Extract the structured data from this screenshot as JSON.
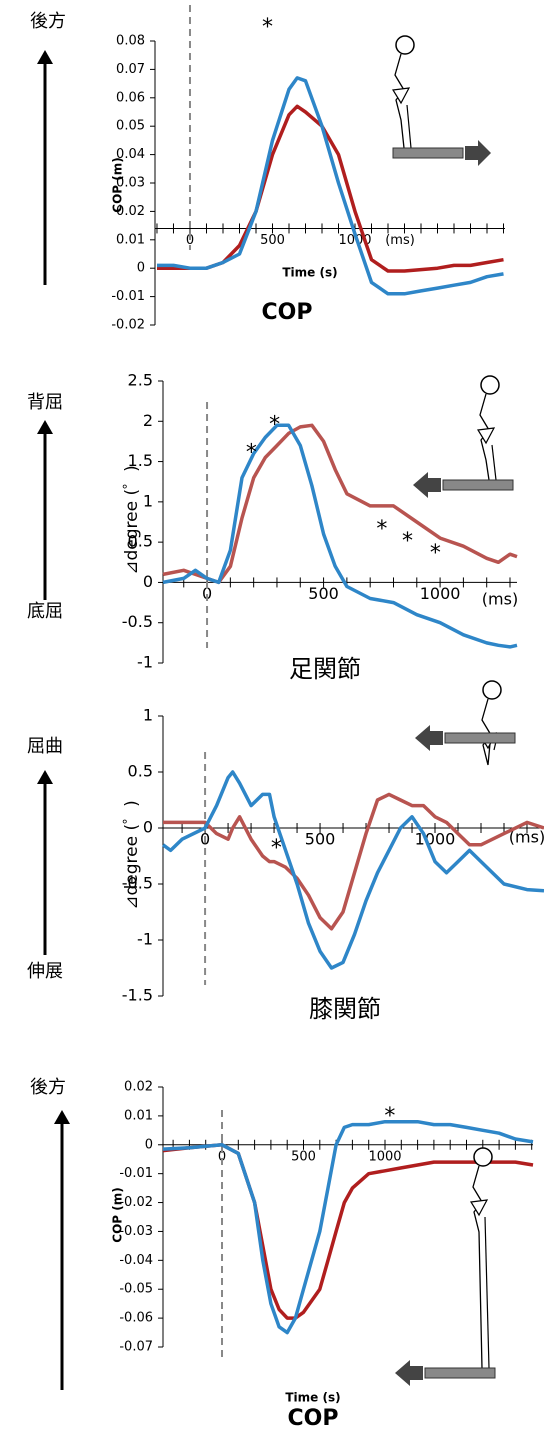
{
  "chart_data": [
    {
      "type": "line",
      "title": "COP",
      "x_label": "Time (s)",
      "y_label": "COP (m)",
      "x_unit": "(ms)",
      "top_label": "後方",
      "annotations": [
        "*"
      ],
      "xaxis_at": 0.014,
      "xlim": [
        -212,
        1909
      ],
      "ylim": [
        -0.02,
        0.08
      ],
      "xticks": [
        0,
        500,
        1000
      ],
      "yticks": [
        {
          "value": -0.02,
          "label": "-0.02"
        },
        {
          "value": -0.01,
          "label": "-0.01"
        },
        0,
        {
          "value": 0.01,
          "label": "0.01"
        },
        {
          "value": 0.02,
          "label": "0.02"
        },
        {
          "value": 0.03,
          "label": "0.03"
        },
        {
          "value": 0.04,
          "label": "0.04"
        },
        {
          "value": 0.05,
          "label": "0.05"
        },
        {
          "value": 0.06,
          "label": "0.06"
        },
        {
          "value": 0.07,
          "label": "0.07"
        },
        {
          "value": 0.08,
          "label": "0.08"
        }
      ],
      "x": [
        -200,
        -100,
        0,
        100,
        200,
        300,
        400,
        500,
        600,
        650,
        700,
        800,
        900,
        1000,
        1100,
        1200,
        1300,
        1400,
        1500,
        1600,
        1700,
        1800,
        1900
      ],
      "series": [
        {
          "color": "#b01e1e",
          "values": [
            0,
            0,
            0,
            0,
            0.002,
            0.008,
            0.02,
            0.04,
            0.054,
            0.057,
            0.055,
            0.05,
            0.04,
            0.02,
            0.003,
            -0.001,
            -0.001,
            -0.0005,
            0,
            0.001,
            0.001,
            0.002,
            0.003
          ]
        },
        {
          "color": "#2e86c8",
          "values": [
            0.001,
            0.001,
            0,
            0,
            0.002,
            0.005,
            0.02,
            0.045,
            0.063,
            0.067,
            0.066,
            0.05,
            0.03,
            0.012,
            -0.005,
            -0.009,
            -0.009,
            -0.008,
            -0.007,
            -0.006,
            -0.005,
            -0.003,
            -0.002
          ]
        }
      ]
    },
    {
      "type": "line",
      "title": "足関節",
      "y_label": "⊿degree (゜)",
      "x_unit": "(ms)",
      "top_label": "背屈",
      "bottom_label": "底屈",
      "annotations": [
        "*",
        "*",
        "*",
        "*",
        "*"
      ],
      "xaxis_at": 0,
      "xlim": [
        -189,
        1330
      ],
      "ylim": [
        -1,
        2.5
      ],
      "xticks": [
        0,
        500,
        1000
      ],
      "yticks": [
        -1,
        -0.5,
        0,
        0.5,
        1,
        1.5,
        2,
        2.5
      ],
      "x": [
        -189,
        -100,
        -50,
        0,
        50,
        100,
        150,
        200,
        250,
        300,
        350,
        400,
        450,
        500,
        550,
        600,
        700,
        800,
        900,
        1000,
        1100,
        1200,
        1250,
        1300,
        1330
      ],
      "series": [
        {
          "color": "#b85450",
          "values": [
            0.1,
            0.15,
            0.1,
            0.05,
            0,
            0.2,
            0.8,
            1.3,
            1.55,
            1.7,
            1.85,
            1.93,
            1.95,
            1.75,
            1.4,
            1.1,
            0.95,
            0.95,
            0.75,
            0.55,
            0.45,
            0.3,
            0.25,
            0.35,
            0.32
          ]
        },
        {
          "color": "#2e86c8",
          "values": [
            0,
            0.05,
            0.15,
            0.05,
            0,
            0.4,
            1.3,
            1.6,
            1.8,
            1.95,
            1.95,
            1.7,
            1.2,
            0.6,
            0.2,
            -0.05,
            -0.2,
            -0.25,
            -0.4,
            -0.5,
            -0.65,
            -0.75,
            -0.78,
            -0.8,
            -0.78
          ]
        }
      ]
    },
    {
      "type": "line",
      "title": "膝関節",
      "y_label": "⊿degree (゜)",
      "x_unit": "(ms)",
      "top_label": "屈曲",
      "bottom_label": "伸展",
      "annotations": [
        "*"
      ],
      "xaxis_at": 0,
      "xlim": [
        -183,
        1474
      ],
      "ylim": [
        -1.5,
        1
      ],
      "xticks": [
        0,
        500,
        1000
      ],
      "yticks": [
        -1.5,
        -1,
        -0.5,
        0,
        0.5,
        1
      ],
      "x": [
        -183,
        -150,
        -100,
        0,
        50,
        100,
        120,
        150,
        200,
        250,
        280,
        300,
        350,
        400,
        450,
        500,
        550,
        600,
        650,
        700,
        750,
        800,
        850,
        900,
        950,
        1000,
        1050,
        1100,
        1150,
        1200,
        1300,
        1400,
        1474
      ],
      "series": [
        {
          "color": "#b85450",
          "values": [
            0.05,
            0.05,
            0.05,
            0.05,
            -0.05,
            -0.1,
            0,
            0.1,
            -0.1,
            -0.25,
            -0.3,
            -0.3,
            -0.35,
            -0.45,
            -0.6,
            -0.8,
            -0.9,
            -0.75,
            -0.4,
            -0.05,
            0.25,
            0.3,
            0.25,
            0.2,
            0.2,
            0.1,
            0.05,
            -0.05,
            -0.15,
            -0.15,
            -0.05,
            0.05,
            0
          ]
        },
        {
          "color": "#2e86c8",
          "values": [
            -0.15,
            -0.2,
            -0.1,
            0,
            0.2,
            0.45,
            0.5,
            0.4,
            0.2,
            0.3,
            0.3,
            0.1,
            -0.2,
            -0.5,
            -0.85,
            -1.1,
            -1.25,
            -1.2,
            -0.95,
            -0.65,
            -0.4,
            -0.2,
            0,
            0.1,
            -0.05,
            -0.3,
            -0.4,
            -0.3,
            -0.2,
            -0.3,
            -0.5,
            -0.55,
            -0.56
          ]
        }
      ]
    },
    {
      "type": "line",
      "title": "COP",
      "x_label": "Time (s)",
      "y_label": "COP (m)",
      "top_label": "後方",
      "annotations": [
        "*"
      ],
      "xaxis_at": 0,
      "xlim": [
        -362,
        1908
      ],
      "ylim": [
        -0.07,
        0.02
      ],
      "xticks": [
        0,
        500,
        1000
      ],
      "yticks": [
        {
          "value": -0.07,
          "label": "-0.07"
        },
        {
          "value": -0.06,
          "label": "-0.06"
        },
        {
          "value": -0.05,
          "label": "-0.05"
        },
        {
          "value": -0.04,
          "label": "-0.04"
        },
        {
          "value": -0.03,
          "label": "-0.03"
        },
        {
          "value": -0.02,
          "label": "-0.02"
        },
        {
          "value": -0.01,
          "label": "-0.01"
        },
        0,
        {
          "value": 0.01,
          "label": "0.01"
        },
        {
          "value": 0.02,
          "label": "0.02"
        }
      ],
      "x": [
        -362,
        -200,
        0,
        100,
        200,
        250,
        300,
        350,
        400,
        450,
        500,
        600,
        650,
        700,
        750,
        800,
        900,
        1000,
        1100,
        1200,
        1300,
        1400,
        1500,
        1600,
        1700,
        1800,
        1908
      ],
      "series": [
        {
          "color": "#b01e1e",
          "values": [
            -0.002,
            -0.001,
            0,
            -0.003,
            -0.02,
            -0.035,
            -0.05,
            -0.057,
            -0.06,
            -0.06,
            -0.058,
            -0.05,
            -0.04,
            -0.03,
            -0.02,
            -0.015,
            -0.01,
            -0.009,
            -0.008,
            -0.007,
            -0.006,
            -0.006,
            -0.006,
            -0.006,
            -0.006,
            -0.006,
            -0.007
          ]
        },
        {
          "color": "#2e86c8",
          "values": [
            -0.0015,
            -0.001,
            0,
            -0.003,
            -0.02,
            -0.04,
            -0.055,
            -0.063,
            -0.065,
            -0.06,
            -0.05,
            -0.03,
            -0.015,
            0,
            0.006,
            0.007,
            0.007,
            0.008,
            0.008,
            0.008,
            0.007,
            0.007,
            0.006,
            0.005,
            0.004,
            0.002,
            0.001
          ]
        }
      ]
    }
  ]
}
